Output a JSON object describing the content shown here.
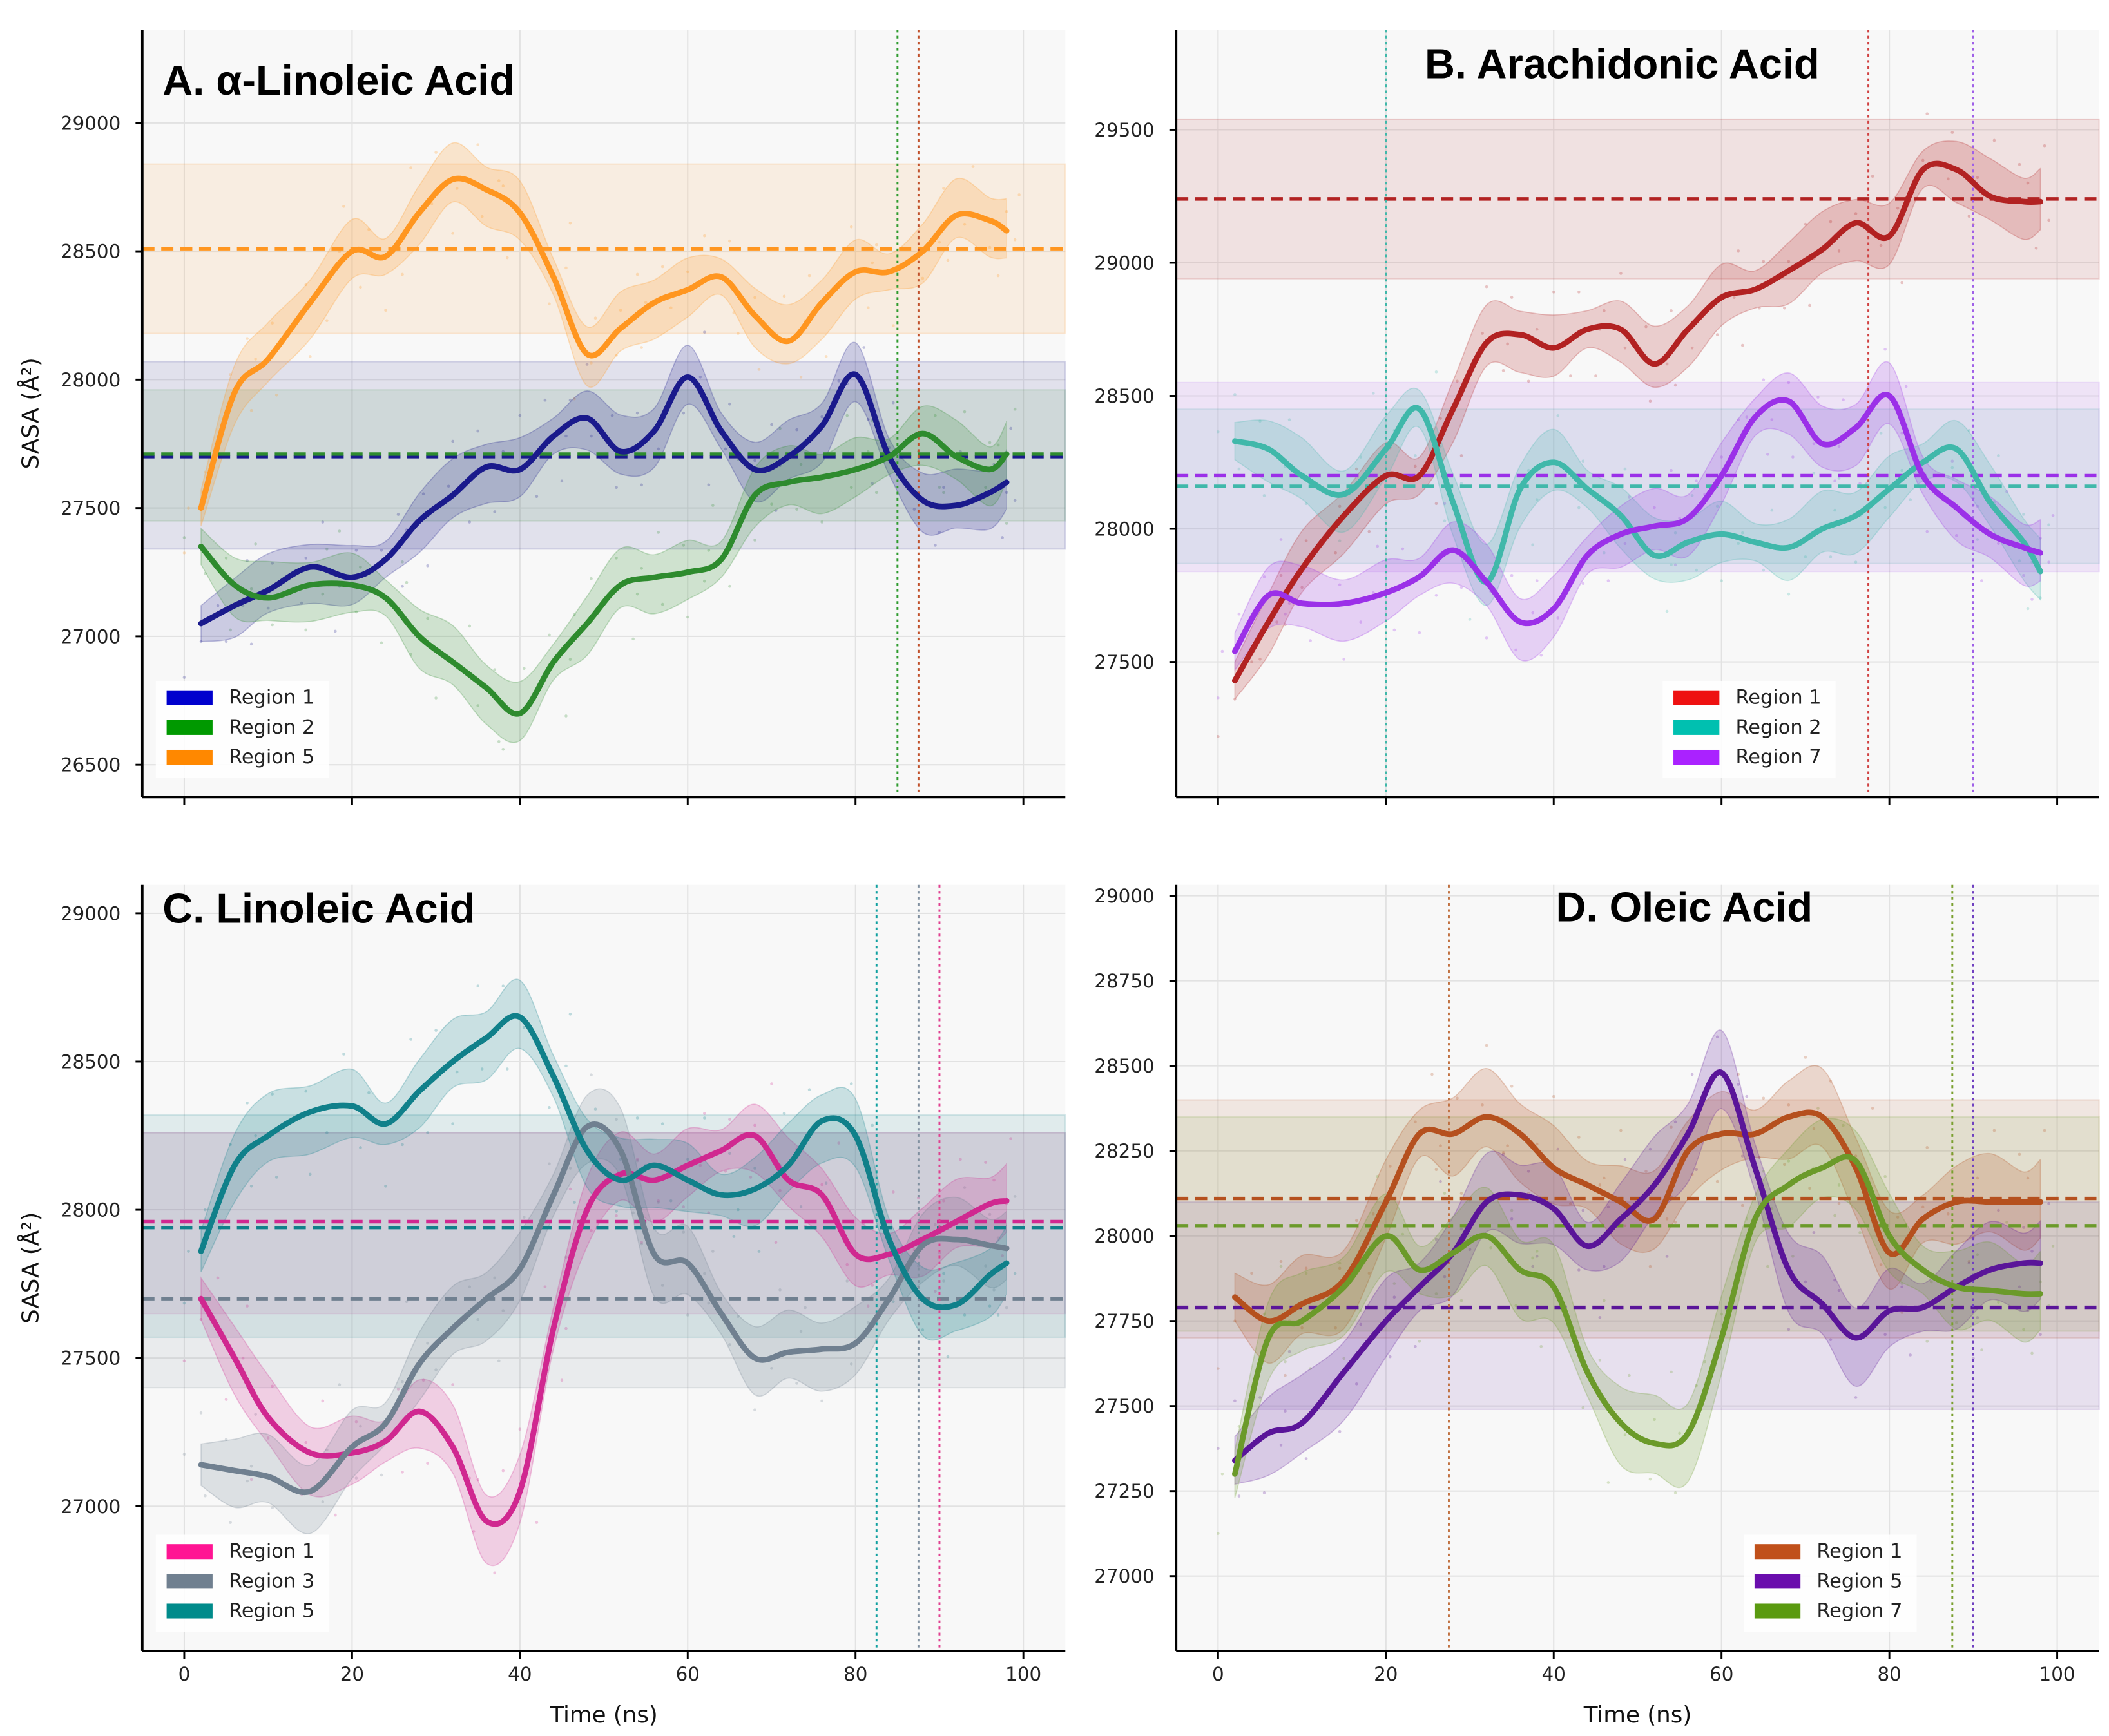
{
  "chart_data": [
    {
      "type": "line",
      "title": "A. α-Linoleic Acid",
      "xlabel": "",
      "ylabel": "SASA (Å²)",
      "xlim": [
        -5,
        105
      ],
      "ylim": [
        26374,
        29363
      ],
      "xticks": [
        0,
        20,
        40,
        60,
        80,
        100
      ],
      "show_xtick_labels": false,
      "yticks": [
        26500,
        27000,
        27500,
        28000,
        28500,
        29000
      ],
      "grid": true,
      "legend_position": "bottom-left",
      "vlines": [
        {
          "x": 85,
          "color": "#2e9b2e"
        },
        {
          "x": 87.5,
          "color": "#c0502a"
        }
      ],
      "series": [
        {
          "name": "Region 1",
          "color": "#1a1a8c",
          "legend_color": "#0000cd",
          "mean": 27700,
          "band": [
            27340,
            28070
          ],
          "x": [
            2,
            6,
            10,
            15,
            20,
            24,
            28,
            32,
            36,
            40,
            44,
            48,
            52,
            56,
            60,
            64,
            68,
            72,
            76,
            80,
            84,
            88,
            92,
            96,
            98
          ],
          "y": [
            27050,
            27120,
            27180,
            27270,
            27230,
            27300,
            27450,
            27550,
            27660,
            27650,
            27780,
            27850,
            27720,
            27800,
            28010,
            27800,
            27650,
            27700,
            27820,
            28020,
            27700,
            27530,
            27510,
            27560,
            27600
          ]
        },
        {
          "name": "Region 2",
          "color": "#2e8b2e",
          "legend_color": "#009900",
          "mean": 27710,
          "band": [
            27450,
            27960
          ],
          "x": [
            2,
            6,
            10,
            15,
            20,
            24,
            28,
            32,
            36,
            40,
            44,
            48,
            52,
            56,
            60,
            64,
            68,
            72,
            76,
            80,
            84,
            88,
            92,
            96,
            98
          ],
          "y": [
            27350,
            27200,
            27150,
            27200,
            27200,
            27150,
            27000,
            26900,
            26800,
            26700,
            26900,
            27050,
            27200,
            27230,
            27250,
            27300,
            27550,
            27600,
            27620,
            27650,
            27700,
            27790,
            27700,
            27650,
            27710
          ]
        },
        {
          "name": "Region 5",
          "color": "#ff9620",
          "legend_color": "#ff8800",
          "mean": 28510,
          "band": [
            28180,
            28840
          ],
          "x": [
            2,
            6,
            10,
            15,
            20,
            24,
            28,
            32,
            36,
            40,
            44,
            48,
            52,
            56,
            60,
            64,
            68,
            72,
            76,
            80,
            84,
            88,
            92,
            96,
            98
          ],
          "y": [
            27500,
            27950,
            28080,
            28300,
            28500,
            28480,
            28650,
            28780,
            28740,
            28650,
            28400,
            28100,
            28200,
            28300,
            28350,
            28400,
            28250,
            28150,
            28300,
            28420,
            28420,
            28500,
            28640,
            28620,
            28580
          ]
        }
      ]
    },
    {
      "type": "line",
      "title": "B. Arachidonic Acid",
      "xlabel": "",
      "ylabel": "",
      "xlim": [
        -5,
        105
      ],
      "ylim": [
        26992,
        29876
      ],
      "xticks": [
        0,
        20,
        40,
        60,
        80,
        100
      ],
      "show_xtick_labels": false,
      "yticks": [
        27500,
        28000,
        28500,
        29000,
        29500
      ],
      "grid": true,
      "legend_position": "bottom-right",
      "vlines": [
        {
          "x": 20,
          "color": "#40b8aa"
        },
        {
          "x": 77.5,
          "color": "#d04040"
        },
        {
          "x": 90,
          "color": "#a060e8"
        }
      ],
      "series": [
        {
          "name": "Region 1",
          "color": "#b22222",
          "legend_color": "#ee1111",
          "mean": 29240,
          "band": [
            28940,
            29540
          ],
          "x": [
            2,
            6,
            10,
            15,
            20,
            24,
            28,
            32,
            36,
            40,
            44,
            48,
            52,
            56,
            60,
            64,
            68,
            72,
            76,
            80,
            84,
            88,
            92,
            96,
            98
          ],
          "y": [
            27430,
            27650,
            27850,
            28050,
            28200,
            28200,
            28450,
            28700,
            28730,
            28680,
            28750,
            28750,
            28620,
            28750,
            28870,
            28900,
            28970,
            29050,
            29150,
            29100,
            29350,
            29350,
            29250,
            29230,
            29230
          ]
        },
        {
          "name": "Region 2",
          "color": "#40b8aa",
          "legend_color": "#00c0b0",
          "mean": 28160,
          "band": [
            27870,
            28450
          ],
          "x": [
            2,
            6,
            10,
            15,
            20,
            24,
            28,
            32,
            36,
            40,
            44,
            48,
            52,
            56,
            60,
            64,
            68,
            72,
            76,
            80,
            84,
            88,
            92,
            96,
            98
          ],
          "y": [
            28330,
            28300,
            28200,
            28130,
            28300,
            28450,
            28100,
            27800,
            28150,
            28250,
            28150,
            28050,
            27900,
            27950,
            27980,
            27950,
            27930,
            28000,
            28050,
            28150,
            28250,
            28300,
            28100,
            27950,
            27840
          ]
        },
        {
          "name": "Region 7",
          "color": "#9b30e8",
          "legend_color": "#aa22ff",
          "mean": 28200,
          "band": [
            27840,
            28550
          ],
          "x": [
            2,
            6,
            10,
            15,
            20,
            24,
            28,
            32,
            36,
            40,
            44,
            48,
            52,
            56,
            60,
            64,
            68,
            72,
            76,
            80,
            84,
            88,
            92,
            96,
            98
          ],
          "y": [
            27540,
            27750,
            27720,
            27720,
            27760,
            27820,
            27920,
            27800,
            27650,
            27700,
            27900,
            27980,
            28010,
            28040,
            28200,
            28420,
            28480,
            28320,
            28380,
            28500,
            28200,
            28080,
            27980,
            27930,
            27910
          ]
        }
      ]
    },
    {
      "type": "line",
      "title": "C. Linoleic Acid",
      "xlabel": "Time (ns)",
      "ylabel": "SASA (Å²)",
      "xlim": [
        -5,
        105
      ],
      "ylim": [
        26512,
        29096
      ],
      "xticks": [
        0,
        20,
        40,
        60,
        80,
        100
      ],
      "show_xtick_labels": true,
      "yticks": [
        27000,
        27500,
        28000,
        28500,
        29000
      ],
      "grid": true,
      "legend_position": "bottom-left",
      "vlines": [
        {
          "x": 82.5,
          "color": "#10a0a0"
        },
        {
          "x": 87.5,
          "color": "#8090a0"
        },
        {
          "x": 90,
          "color": "#e04090"
        }
      ],
      "series": [
        {
          "name": "Region 1",
          "color": "#d02890",
          "legend_color": "#ff1493",
          "mean": 27960,
          "band": [
            27650,
            28260
          ],
          "x": [
            2,
            6,
            10,
            15,
            20,
            24,
            28,
            32,
            36,
            40,
            44,
            48,
            52,
            56,
            60,
            64,
            68,
            72,
            76,
            80,
            84,
            88,
            92,
            96,
            98
          ],
          "y": [
            27700,
            27500,
            27300,
            27180,
            27180,
            27220,
            27320,
            27200,
            26950,
            27050,
            27600,
            28000,
            28120,
            28100,
            28150,
            28200,
            28250,
            28100,
            28050,
            27850,
            27850,
            27900,
            27960,
            28020,
            28030
          ]
        },
        {
          "name": "Region 3",
          "color": "#708090",
          "legend_color": "#708090",
          "mean": 27700,
          "band": [
            27400,
            28260
          ],
          "x": [
            2,
            6,
            10,
            15,
            20,
            24,
            28,
            32,
            36,
            40,
            44,
            48,
            52,
            56,
            60,
            64,
            68,
            72,
            76,
            80,
            84,
            88,
            92,
            96,
            98
          ],
          "y": [
            27140,
            27120,
            27100,
            27050,
            27200,
            27280,
            27480,
            27600,
            27700,
            27800,
            28050,
            28280,
            28200,
            27850,
            27820,
            27650,
            27500,
            27520,
            27530,
            27550,
            27700,
            27880,
            27900,
            27880,
            27870
          ]
        },
        {
          "name": "Region 5",
          "color": "#10808a",
          "legend_color": "#008b8b",
          "mean": 27940,
          "band": [
            27570,
            28320
          ],
          "x": [
            2,
            6,
            10,
            15,
            20,
            24,
            28,
            32,
            36,
            40,
            44,
            48,
            52,
            56,
            60,
            64,
            68,
            72,
            76,
            80,
            84,
            88,
            92,
            96,
            98
          ],
          "y": [
            27860,
            28150,
            28250,
            28330,
            28350,
            28290,
            28400,
            28500,
            28580,
            28650,
            28450,
            28200,
            28100,
            28150,
            28100,
            28050,
            28070,
            28150,
            28300,
            28250,
            27900,
            27700,
            27680,
            27780,
            27820
          ]
        }
      ]
    },
    {
      "type": "line",
      "title": "D. Oleic Acid",
      "xlabel": "Time (ns)",
      "ylabel": "",
      "xlim": [
        -5,
        105
      ],
      "ylim": [
        26780,
        29032
      ],
      "xticks": [
        0,
        20,
        40,
        60,
        80,
        100
      ],
      "show_xtick_labels": true,
      "yticks": [
        27000,
        27250,
        27500,
        27750,
        28000,
        28250,
        28500,
        28750,
        29000
      ],
      "grid": true,
      "legend_position": "bottom-right",
      "vlines": [
        {
          "x": 27.5,
          "color": "#c07040"
        },
        {
          "x": 87.5,
          "color": "#7aa030"
        },
        {
          "x": 90,
          "color": "#7040c0"
        }
      ],
      "series": [
        {
          "name": "Region 1",
          "color": "#b5501e",
          "legend_color": "#c0501a",
          "mean": 28110,
          "band": [
            27700,
            28400
          ],
          "x": [
            2,
            6,
            10,
            15,
            20,
            24,
            28,
            32,
            36,
            40,
            44,
            48,
            52,
            56,
            60,
            64,
            68,
            72,
            76,
            80,
            84,
            88,
            92,
            96,
            98
          ],
          "y": [
            27820,
            27750,
            27800,
            27870,
            28100,
            28300,
            28300,
            28350,
            28300,
            28200,
            28150,
            28100,
            28050,
            28250,
            28300,
            28300,
            28350,
            28350,
            28200,
            27950,
            28050,
            28100,
            28100,
            28100,
            28100
          ]
        },
        {
          "name": "Region 5",
          "color": "#5a1599",
          "legend_color": "#6a0dad",
          "mean": 27790,
          "band": [
            27490,
            28100
          ],
          "x": [
            2,
            6,
            10,
            15,
            20,
            24,
            28,
            32,
            36,
            40,
            44,
            48,
            52,
            56,
            60,
            64,
            68,
            72,
            76,
            80,
            84,
            88,
            92,
            96,
            98
          ],
          "y": [
            27340,
            27420,
            27450,
            27600,
            27750,
            27850,
            27950,
            28100,
            28120,
            28080,
            27970,
            28050,
            28150,
            28300,
            28480,
            28200,
            27900,
            27800,
            27700,
            27780,
            27790,
            27850,
            27900,
            27920,
            27920
          ]
        },
        {
          "name": "Region 7",
          "color": "#6b9a2a",
          "legend_color": "#5a9a10",
          "mean": 28030,
          "band": [
            27720,
            28350
          ],
          "x": [
            2,
            6,
            10,
            15,
            20,
            24,
            28,
            32,
            36,
            40,
            44,
            48,
            52,
            56,
            60,
            64,
            68,
            72,
            76,
            80,
            84,
            88,
            92,
            96,
            98
          ],
          "y": [
            27300,
            27700,
            27750,
            27850,
            28000,
            27900,
            27950,
            28000,
            27900,
            27850,
            27600,
            27450,
            27390,
            27420,
            27700,
            28050,
            28150,
            28200,
            28220,
            28000,
            27900,
            27850,
            27840,
            27830,
            27830
          ]
        }
      ]
    }
  ]
}
